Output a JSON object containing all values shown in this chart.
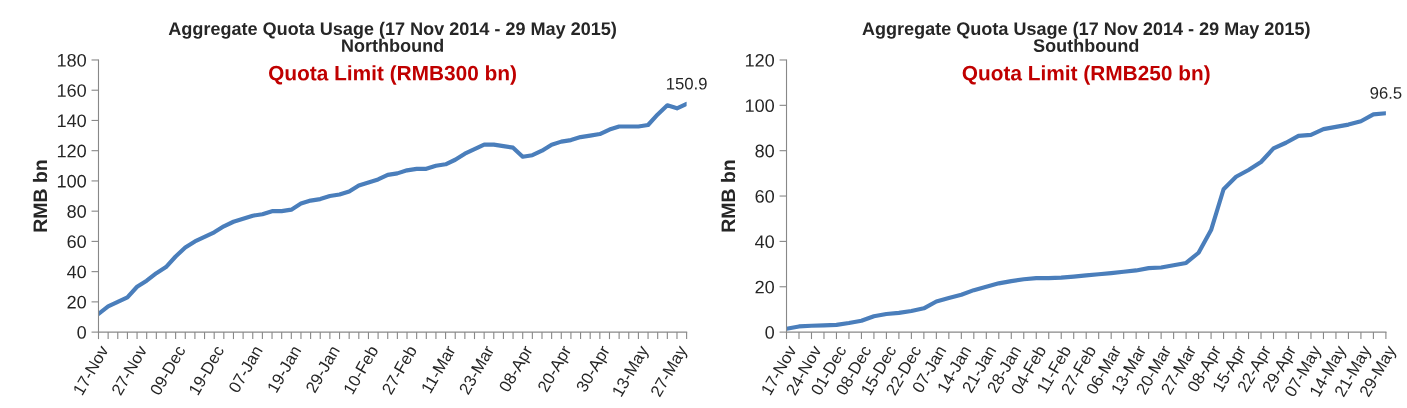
{
  "chart_data": [
    {
      "type": "line",
      "title": "Aggregate Quota Usage (17 Nov 2014 - 29 May 2015)\nNorthbound",
      "subtitle": "Quota Limit (RMB300 bn)",
      "ylabel": "RMB bn",
      "categories": [
        "17-Nov",
        null,
        null,
        null,
        "27-Nov",
        null,
        null,
        null,
        "09-Dec",
        null,
        null,
        null,
        "19-Dec",
        null,
        null,
        null,
        "07-Jan",
        null,
        null,
        null,
        "19-Jan",
        null,
        null,
        null,
        "29-Jan",
        null,
        null,
        null,
        "10-Feb",
        null,
        null,
        null,
        "27-Feb",
        null,
        null,
        null,
        "11-Mar",
        null,
        null,
        null,
        "23-Mar",
        null,
        null,
        null,
        "08-Apr",
        null,
        null,
        null,
        "20-Apr",
        null,
        null,
        null,
        "30-Apr",
        null,
        null,
        null,
        "13-May",
        null,
        null,
        null,
        "27-May",
        null
      ],
      "series": [
        {
          "color": "#4a7ebb",
          "values": [
            12,
            17,
            20,
            23,
            30,
            34,
            39,
            43,
            50,
            56,
            60,
            63,
            66,
            70,
            73,
            75,
            77,
            78,
            80,
            80,
            81,
            85,
            87,
            88,
            90,
            91,
            93,
            97,
            99,
            101,
            104,
            105,
            107,
            108,
            108,
            110,
            111,
            114,
            118,
            121,
            124,
            124,
            123,
            122,
            116,
            117,
            120,
            124,
            126,
            127,
            129,
            130,
            131,
            134,
            136,
            136,
            136,
            137,
            144,
            150,
            148,
            150.9
          ],
          "value_labels": [
            null,
            null,
            null,
            null,
            null,
            null,
            null,
            null,
            null,
            null,
            null,
            null,
            null,
            null,
            null,
            null,
            null,
            null,
            null,
            null,
            null,
            null,
            null,
            null,
            null,
            null,
            null,
            null,
            null,
            null,
            null,
            null,
            null,
            null,
            null,
            null,
            null,
            null,
            null,
            null,
            null,
            null,
            null,
            null,
            null,
            null,
            null,
            null,
            null,
            null,
            null,
            null,
            null,
            null,
            null,
            null,
            null,
            null,
            null,
            null,
            null,
            "150.9"
          ]
        }
      ],
      "ylim": [
        0,
        180
      ],
      "yticks": [
        0,
        20,
        40,
        60,
        80,
        100,
        120,
        140,
        160,
        180
      ],
      "grid": false,
      "legend": false
    },
    {
      "type": "line",
      "title": "Aggregate Quota Usage (17 Nov 2014 - 29 May 2015)\nSouthbound",
      "subtitle": "Quota Limit (RMB250 bn)",
      "ylabel": "RMB bn",
      "categories": [
        "17-Nov",
        null,
        "24-Nov",
        null,
        "01-Dec",
        null,
        "08-Dec",
        null,
        "15-Dec",
        null,
        "22-Dec",
        null,
        "07-Jan",
        null,
        "14-Jan",
        null,
        "21-Jan",
        null,
        "28-Jan",
        null,
        "04-Feb",
        null,
        "11-Feb",
        null,
        "27-Feb",
        null,
        "06-Mar",
        null,
        "13-Mar",
        null,
        "20-Mar",
        null,
        "27-Mar",
        null,
        "08-Apr",
        null,
        "15-Apr",
        null,
        "22-Apr",
        null,
        "29-Apr",
        null,
        "07-May",
        null,
        "14-May",
        null,
        "21-May",
        null,
        "29-May"
      ],
      "series": [
        {
          "color": "#4a7ebb",
          "values": [
            1.5,
            2.5,
            2.8,
            3,
            3.2,
            4,
            5,
            7,
            8,
            8.5,
            9.3,
            10.5,
            13.5,
            15,
            16.5,
            18.5,
            20,
            21.5,
            22.5,
            23.3,
            23.8,
            23.8,
            24,
            24.5,
            25,
            25.5,
            26,
            26.6,
            27.2,
            28.2,
            28.5,
            29.5,
            30.5,
            35,
            45,
            63,
            68.5,
            71.5,
            75,
            81,
            83.5,
            86.5,
            87,
            89.5,
            90.5,
            91.5,
            93,
            96,
            96.5
          ],
          "value_labels": [
            null,
            null,
            null,
            null,
            null,
            null,
            null,
            null,
            null,
            null,
            null,
            null,
            null,
            null,
            null,
            null,
            null,
            null,
            null,
            null,
            null,
            null,
            null,
            null,
            null,
            null,
            null,
            null,
            null,
            null,
            null,
            null,
            null,
            null,
            null,
            null,
            null,
            null,
            null,
            null,
            null,
            null,
            null,
            null,
            null,
            null,
            null,
            null,
            "96.5"
          ]
        }
      ],
      "ylim": [
        0,
        120
      ],
      "yticks": [
        0,
        20,
        40,
        60,
        80,
        100,
        120
      ],
      "grid": false,
      "legend": false
    }
  ]
}
